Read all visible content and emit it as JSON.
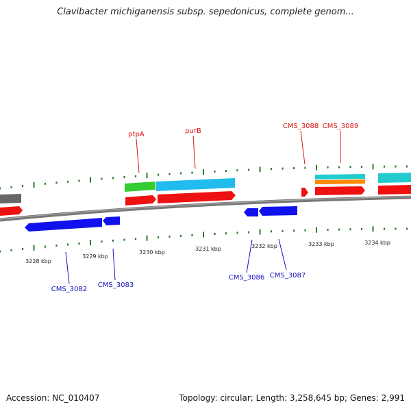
{
  "title": "Clavibacter michiganensis subsp. sepedonicus, complete genom...",
  "footer": {
    "accession": "Accession: NC_010407",
    "summary": "Topology: circular; Length: 3,258,645 bp; Genes: 2,991"
  },
  "colors": {
    "forward_label": "#dd1111",
    "reverse_label": "#1111bb",
    "backbone": "#7a7a7a",
    "tick": "#2a7a2a",
    "cds_red": "#ee1111",
    "cds_blue": "#1a1aee",
    "cds_green": "#33cc33",
    "cds_cyan": "#22bbee",
    "cds_teal": "#22c8cc",
    "cds_orange": "#ff8800",
    "cds_gray": "#666666"
  },
  "scale_labels": [
    "3228 kbp",
    "3229 kbp",
    "3230 kbp",
    "3231 kbp",
    "3232 kbp",
    "3233 kbp",
    "3234 kbp"
  ],
  "forward_genes": [
    "ptpA",
    "purB",
    "CMS_3088",
    "CMS_3089"
  ],
  "reverse_genes": [
    "CMS_3082",
    "CMS_3083",
    "CMS_3086",
    "CMS_3087"
  ]
}
